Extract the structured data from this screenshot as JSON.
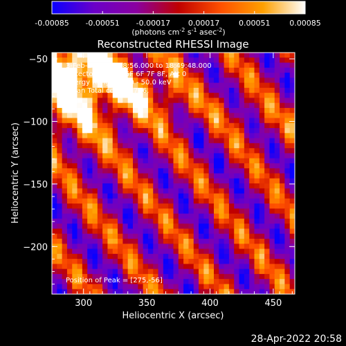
{
  "chart_data": {
    "type": "heatmap",
    "title": "Reconstructed RHESSI Image",
    "xlabel": "Heliocentric X (arcsec)",
    "ylabel": "Heliocentric Y (arcsec)",
    "xlim": [
      275,
      467
    ],
    "ylim": [
      -238,
      -45
    ],
    "x_ticks": [
      300,
      350,
      400,
      450
    ],
    "y_ticks": [
      -50,
      -100,
      -150,
      -200
    ],
    "colorbar": {
      "range": [
        -0.00085,
        0.00085
      ],
      "ticks": [
        "-0.00085",
        "-0.00051",
        "-0.00017",
        "0.00017",
        "0.00051",
        "0.00085"
      ],
      "units_main": "(photons cm",
      "units_exp1": "-2",
      "units_mid1": " s",
      "units_exp2": "-1",
      "units_mid2": " asec",
      "units_exp3": "-2",
      "units_end": ")",
      "palette": [
        "#0a00ff",
        "#6a00c8",
        "#8a00a0",
        "#c00000",
        "#ff5000",
        "#ffa000",
        "#ffffff"
      ]
    },
    "annotations": {
      "time": "3-Feb-2003 18:48:56.000 to 18:49:48.000",
      "detectors": "Detectors: 3F 4F 5F 6F 7F 8F, Att 0",
      "energy": "Energy Range: 25.0 - 50.0 keV",
      "clean": "Clean     Total counts: 716.",
      "peak": "Position of Peak = [275,-56]"
    },
    "peak": [
      275,
      -56
    ],
    "grid_cells": [
      48,
      48
    ]
  },
  "footer": {
    "timestamp": "28-Apr-2022 20:58"
  }
}
